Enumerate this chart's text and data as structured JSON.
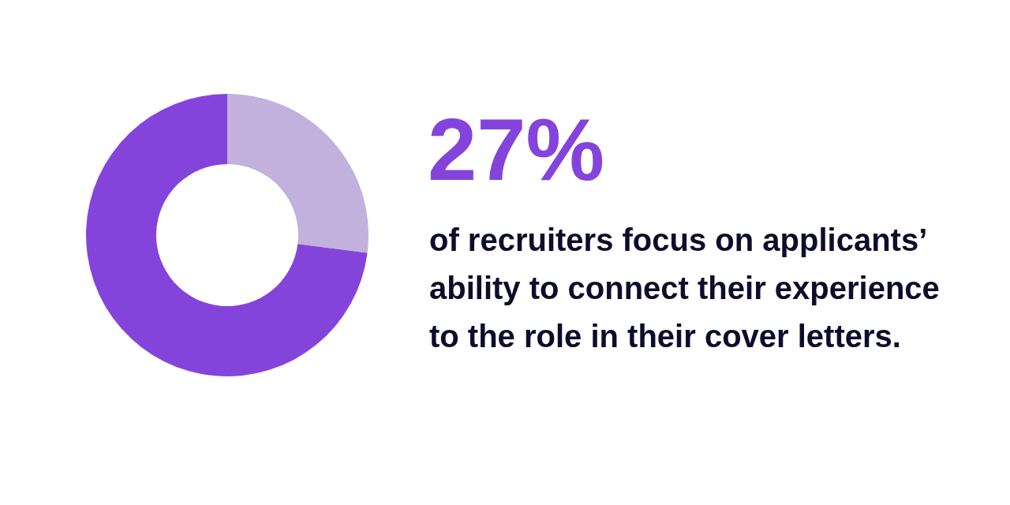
{
  "chart_data": {
    "type": "donut",
    "categories": [
      null,
      null
    ],
    "values": [
      27,
      73
    ],
    "colors": [
      "#c2b1dc",
      "#8444dc"
    ],
    "annotations": [
      "27%",
      "of recruiters focus on applicants’ ability to connect their experience to the role in their cover letters."
    ],
    "legend": false
  }
}
